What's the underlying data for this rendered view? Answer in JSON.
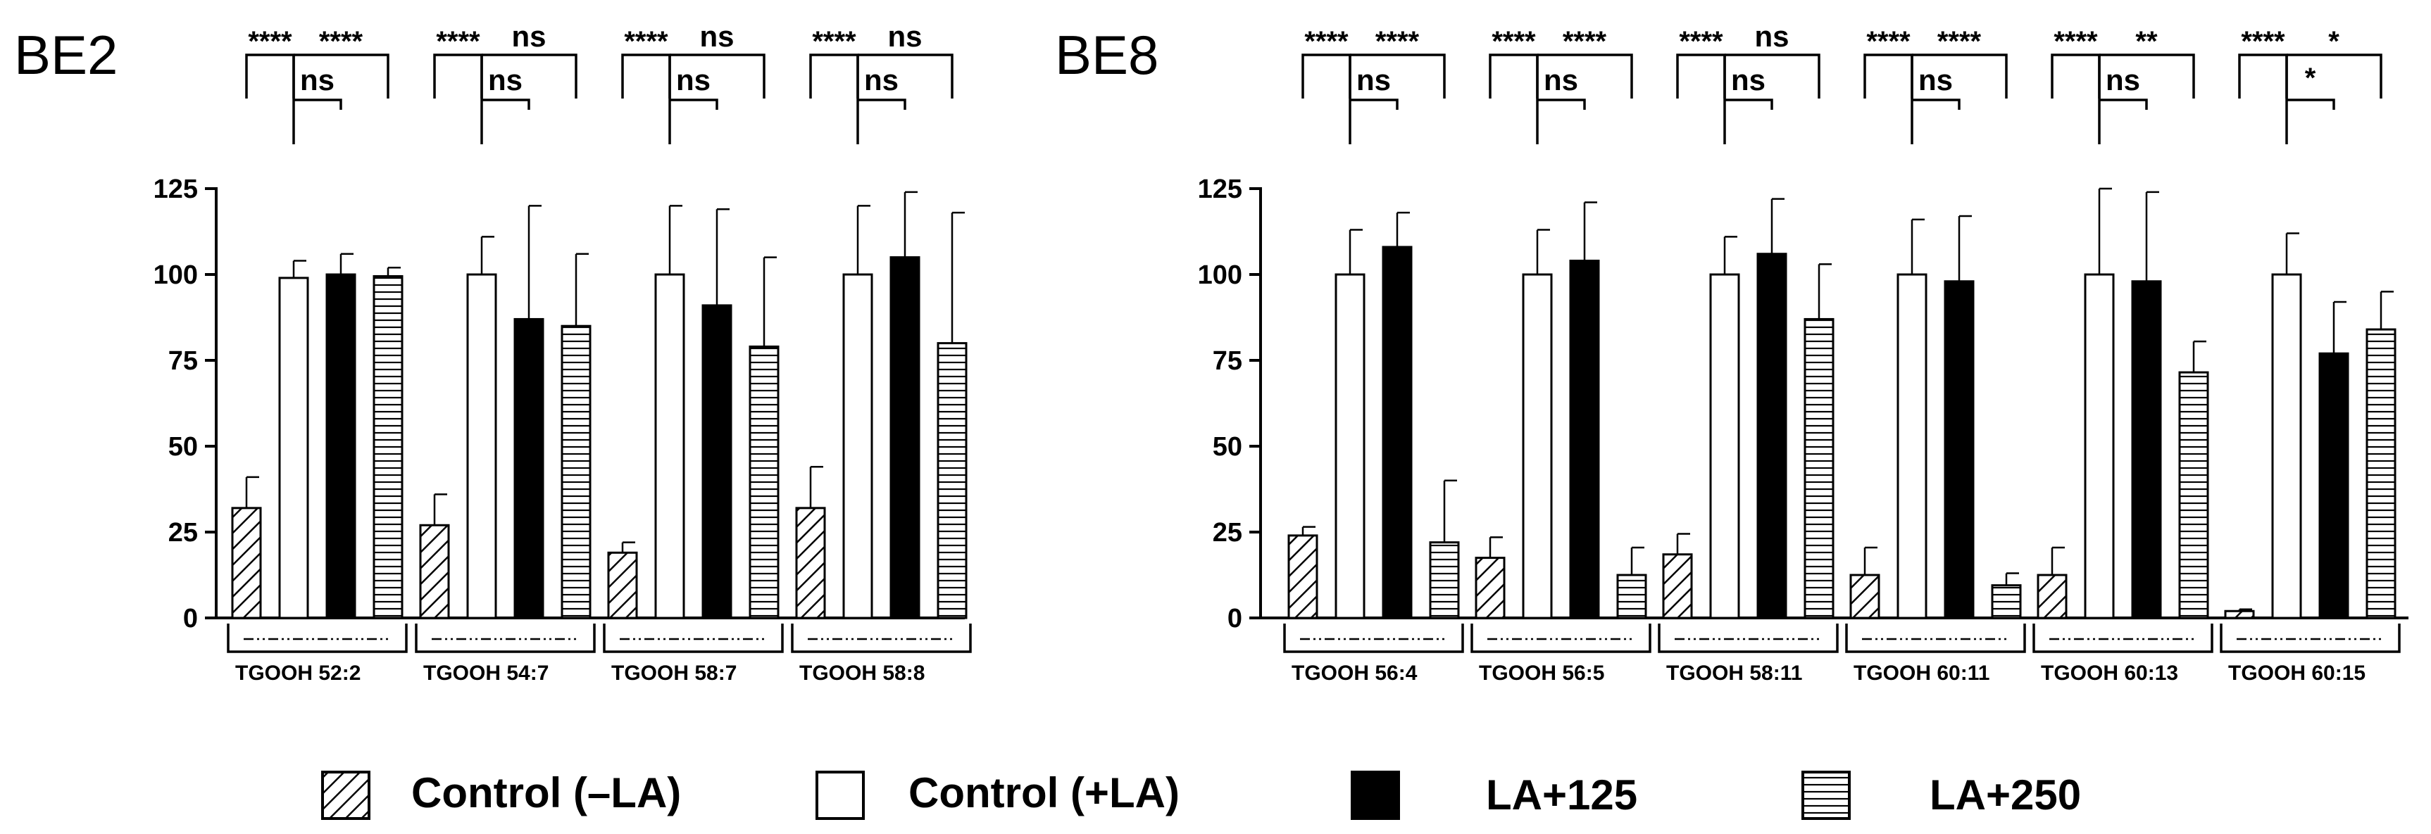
{
  "legend": [
    {
      "name": "Control (–LA)",
      "pattern": "diag"
    },
    {
      "name": "Control (+LA)",
      "pattern": "open"
    },
    {
      "name": "LA+125",
      "pattern": "solid"
    },
    {
      "name": "LA+250",
      "pattern": "horiz"
    }
  ],
  "chart_data": [
    {
      "type": "bar",
      "title": "BE2",
      "xlabel": "",
      "ylabel": "",
      "ylim": [
        0,
        125
      ],
      "yticks": [
        0,
        25,
        50,
        75,
        100,
        125
      ],
      "series_names": [
        "Control (–LA)",
        "Control (+LA)",
        "LA+125",
        "LA+250"
      ],
      "groups": [
        {
          "label": "TGOOH 52:2",
          "values": [
            32,
            99,
            100,
            99.5
          ],
          "errors": [
            9,
            5,
            6,
            2.5
          ],
          "sig": {
            "a": "****",
            "b": "****",
            "c": "ns"
          }
        },
        {
          "label": "TGOOH 54:7",
          "values": [
            27,
            100,
            87,
            85
          ],
          "errors": [
            9,
            11,
            33,
            21
          ],
          "sig": {
            "a": "****",
            "b": "ns",
            "c": "ns"
          }
        },
        {
          "label": "TGOOH 58:7",
          "values": [
            19,
            100,
            91,
            79
          ],
          "errors": [
            3,
            20,
            28,
            26
          ],
          "sig": {
            "a": "****",
            "b": "ns",
            "c": "ns"
          }
        },
        {
          "label": "TGOOH 58:8",
          "values": [
            32,
            100,
            105,
            80
          ],
          "errors": [
            12,
            20,
            19,
            38
          ],
          "sig": {
            "a": "****",
            "b": "ns",
            "c": "ns"
          }
        }
      ]
    },
    {
      "type": "bar",
      "title": "BE8",
      "xlabel": "",
      "ylabel": "",
      "ylim": [
        0,
        125
      ],
      "yticks": [
        0,
        25,
        50,
        75,
        100,
        125
      ],
      "series_names": [
        "Control (–LA)",
        "Control (+LA)",
        "LA+125",
        "LA+250"
      ],
      "groups": [
        {
          "label": "TGOOH 56:4",
          "values": [
            24,
            100,
            108,
            22
          ],
          "errors": [
            2.5,
            13,
            10,
            18
          ],
          "sig": {
            "a": "****",
            "b": "****",
            "c": "ns"
          }
        },
        {
          "label": "TGOOH 56:5",
          "values": [
            17.5,
            100,
            104,
            12.5
          ],
          "errors": [
            6,
            13,
            17,
            8
          ],
          "sig": {
            "a": "****",
            "b": "****",
            "c": "ns"
          }
        },
        {
          "label": "TGOOH 58:11",
          "values": [
            18.5,
            100,
            106,
            87
          ],
          "errors": [
            6,
            11,
            16,
            16
          ],
          "sig": {
            "a": "****",
            "b": "ns",
            "c": "ns"
          }
        },
        {
          "label": "TGOOH 60:11",
          "values": [
            12.5,
            100,
            98,
            9.5
          ],
          "errors": [
            8,
            16,
            19,
            3.5
          ],
          "sig": {
            "a": "****",
            "b": "****",
            "c": "ns"
          }
        },
        {
          "label": "TGOOH 60:13",
          "values": [
            12.5,
            100,
            98,
            71.5
          ],
          "errors": [
            8,
            25,
            26,
            9
          ],
          "sig": {
            "a": "****",
            "b": "**",
            "c": "ns"
          }
        },
        {
          "label": "TGOOH 60:15",
          "values": [
            2,
            100,
            77,
            84
          ],
          "errors": [
            0.5,
            12,
            15,
            11
          ],
          "sig": {
            "a": "****",
            "b": "*",
            "c": "*"
          }
        }
      ]
    }
  ]
}
